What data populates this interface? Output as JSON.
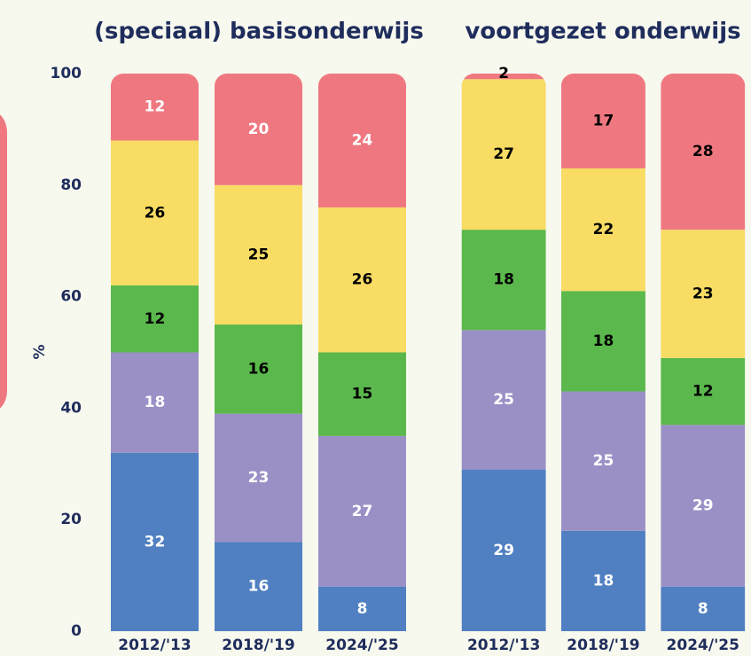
{
  "chart_data": [
    {
      "type": "stacked_bar",
      "title": "(speciaal) basisonderwijs",
      "y_label": "%",
      "categories": [
        "2012/'13",
        "2018/'19",
        "2024/'25"
      ],
      "ylim": [
        0,
        100
      ],
      "yticks": [
        0,
        20,
        40,
        60,
        80,
        100
      ],
      "series": [
        {
          "color": "#5080c1",
          "label_color": "#ffffff",
          "values": [
            32,
            16,
            8
          ]
        },
        {
          "color": "#9b90c6",
          "label_color": "#ffffff",
          "values": [
            18,
            23,
            27
          ]
        },
        {
          "color": "#5bb84c",
          "label_color": "#000000",
          "values": [
            12,
            16,
            15
          ]
        },
        {
          "color": "#f8dc64",
          "label_color": "#000000",
          "values": [
            26,
            25,
            26
          ]
        },
        {
          "color": "#ef7880",
          "label_color": "#ffffff",
          "values": [
            12,
            20,
            24
          ]
        }
      ]
    },
    {
      "type": "stacked_bar",
      "title": "voortgezet onderwijs",
      "categories": [
        "2012/'13",
        "2018/'19",
        "2024/'25"
      ],
      "ylim": [
        0,
        100
      ],
      "series": [
        {
          "color": "#5080c1",
          "label_color": "#ffffff",
          "values": [
            29,
            18,
            8
          ]
        },
        {
          "color": "#9b90c6",
          "label_color": "#ffffff",
          "values": [
            25,
            25,
            29
          ]
        },
        {
          "color": "#5bb84c",
          "label_color": "#000000",
          "values": [
            18,
            18,
            12
          ]
        },
        {
          "color": "#f8dc64",
          "label_color": "#000000",
          "values": [
            27,
            22,
            23
          ]
        },
        {
          "color": "#ef7880",
          "label_color": "#000000",
          "values": [
            2,
            17,
            28
          ]
        }
      ]
    }
  ]
}
